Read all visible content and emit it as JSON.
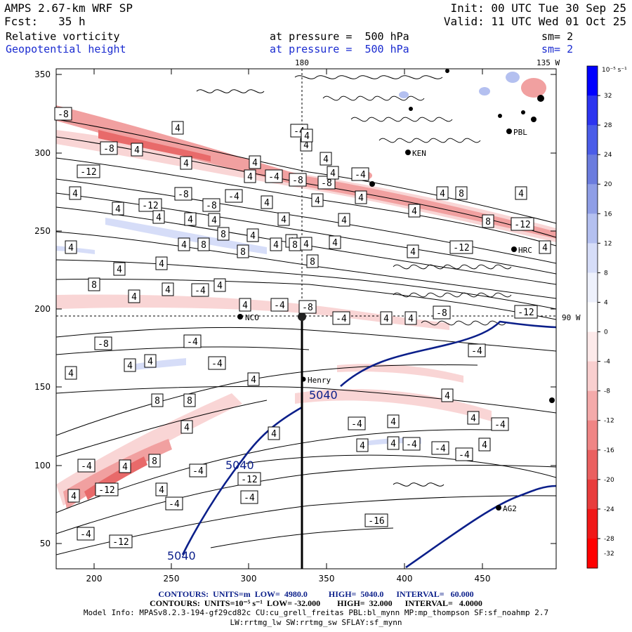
{
  "header": {
    "title": "AMPS 2.67-km WRF SP",
    "fcst": "Fcst:   35 h",
    "init": "Init: 00 UTC Tue 30 Sep 25",
    "valid": "Valid: 11 UTC Wed 01 Oct 25",
    "field1": "Relative vorticity",
    "field2": "Geopotential height",
    "pressure1": "at pressure =  500 hPa",
    "pressure2": "at pressure =  500 hPa",
    "sm1": "sm= 2",
    "sm2": "sm= 2"
  },
  "map": {
    "lon_top_label": "180",
    "lon_right_top_label": "135 W",
    "lat_right_label": "90 W",
    "x_ticks": [
      "200",
      "250",
      "300",
      "350",
      "400",
      "450"
    ],
    "y_ticks": [
      "50",
      "100",
      "150",
      "200",
      "250",
      "300",
      "350"
    ],
    "stations": [
      {
        "name": "NCO"
      },
      {
        "name": "Henry"
      },
      {
        "name": "KEN"
      },
      {
        "name": "PBL"
      },
      {
        "name": "HRC"
      },
      {
        "name": "AG2"
      }
    ],
    "height_labels": [
      "5040",
      "5040",
      "5040"
    ],
    "vorticity_labels": [
      "-8",
      "4",
      "-4",
      "-8",
      "4",
      "4",
      "4",
      "4",
      "-12",
      "4",
      "4",
      "-4",
      "-8",
      "-8",
      "-4",
      "4",
      "-8",
      "-12",
      "-8",
      "-4",
      "4",
      "4",
      "4",
      "4",
      "4",
      "4",
      "4",
      "4",
      "4",
      "8",
      "4",
      "4",
      "4",
      "8",
      "-12",
      "-12",
      "8",
      "4",
      "4",
      "4",
      "4",
      "4",
      "8",
      "8",
      "4",
      "8",
      "8",
      "4",
      "4",
      "4",
      "8",
      "4",
      "4",
      "4",
      "-4",
      "4",
      "-4",
      "-8",
      "-4",
      "4",
      "4",
      "-8",
      "-12",
      "-8",
      "-4",
      "-4",
      "4",
      "4",
      "4",
      "4",
      "-4",
      "8",
      "8",
      "4",
      "4",
      "-4",
      "4",
      "-4",
      "4",
      "4",
      "-4",
      "-4",
      "-4",
      "4",
      "-4",
      "4",
      "8",
      "-4",
      "4",
      "4",
      "-12",
      "-12",
      "-4",
      "-4",
      "-4",
      "-12",
      "-16",
      "4",
      "4",
      "4",
      "4",
      "4",
      "4"
    ],
    "colors": {
      "height_contour": "#0b1f8a",
      "label_text": "#000000"
    }
  },
  "colorbar": {
    "unit_label": "10⁻⁵ s⁻¹",
    "tick_labels": [
      "32",
      "28",
      "24",
      "20",
      "16",
      "12",
      "8",
      "4",
      "0",
      "-4",
      "-8",
      "-12",
      "-16",
      "-20",
      "-24",
      "-28",
      "-32"
    ],
    "colors": [
      "#0000ff",
      "#2c34f0",
      "#4a5ce8",
      "#6b7cde",
      "#8f9ee6",
      "#b4c0f0",
      "#d6ddf8",
      "#eef1fc",
      "#ffffff",
      "#fdeaea",
      "#f9cfcf",
      "#f4aaaa",
      "#ef8585",
      "#ea6060",
      "#e83c3c",
      "#f01818",
      "#ff0000"
    ]
  },
  "footer": {
    "line1": "CONTOURS:  UNITS=m  LOW=  4980.0          HIGH=  5040.0      INTERVAL=   60.000",
    "line2": "CONTOURS:  UNITS=10⁻⁵ s⁻¹  LOW= -32.000        HIGH=  32.000      INTERVAL=   4.0000",
    "line3": "Model Info: MPASv8.2.3-194-gf29cd82c CU:cu_grell_freitas PBL:bl_mynn MP:mp_thompson SF:sf_noahmp 2.7",
    "line4": "LW:rrtmg_lw SW:rrtmg_sw SFLAY:sf_mynn"
  }
}
